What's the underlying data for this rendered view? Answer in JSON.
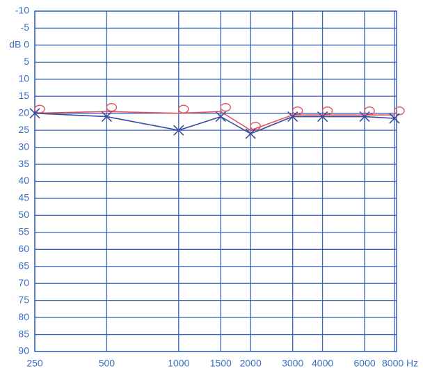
{
  "chart_data": {
    "type": "line",
    "x": [
      250,
      500,
      1000,
      1500,
      2000,
      3000,
      4000,
      6000,
      8000
    ],
    "xlim": [
      250,
      8000
    ],
    "log_x": true,
    "xticks": [
      250,
      500,
      1000,
      1500,
      2000,
      3000,
      4000,
      6000,
      {
        "value": 8000,
        "label": "8000 Hz"
      }
    ],
    "ylim": [
      90,
      -10
    ],
    "inverted_y": true,
    "yticks": [
      -10,
      -5,
      {
        "value": 0,
        "label": "dB 0"
      },
      5,
      10,
      15,
      20,
      25,
      30,
      35,
      40,
      45,
      50,
      55,
      60,
      65,
      70,
      75,
      80,
      85,
      90
    ],
    "grid": true,
    "grid_color": "#3a63b8",
    "series": [
      {
        "color": "#e2505c",
        "marker": "circle",
        "values": [
          20,
          19.5,
          20,
          19.5,
          25,
          20.5,
          20.5,
          20.5,
          20.5
        ]
      },
      {
        "color": "#3b4a9a",
        "marker": "x",
        "values": [
          20,
          21,
          25,
          21,
          26,
          21,
          21,
          21,
          21.5
        ]
      }
    ]
  }
}
